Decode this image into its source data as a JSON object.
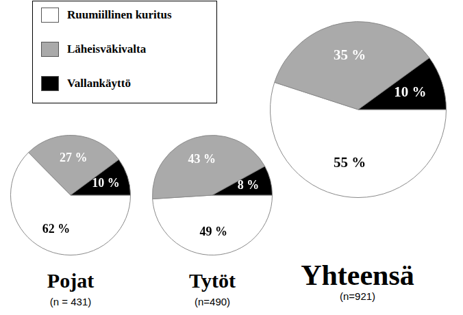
{
  "chart_data": [
    {
      "type": "pie",
      "title": "Pojat",
      "subtitle": "(n = 431)",
      "categories": [
        "Ruumiillinen kuritus",
        "Läheisväkivalta",
        "Vallankäyttö"
      ],
      "values": [
        62,
        27,
        10
      ],
      "value_labels": [
        "62 %",
        "27 %",
        "10 %"
      ],
      "colors": [
        "#ffffff",
        "#aaaaaa",
        "#000000"
      ],
      "data_labels": true,
      "legend": "top-left"
    },
    {
      "type": "pie",
      "title": "Tytöt",
      "subtitle": "(n=490)",
      "categories": [
        "Ruumiillinen kuritus",
        "Läheisväkivalta",
        "Vallankäyttö"
      ],
      "values": [
        49,
        43,
        8
      ],
      "value_labels": [
        "49 %",
        "43 %",
        "8 %"
      ],
      "colors": [
        "#ffffff",
        "#aaaaaa",
        "#000000"
      ],
      "data_labels": true
    },
    {
      "type": "pie",
      "title": "Yhteensä",
      "subtitle": "(n=921)",
      "categories": [
        "Ruumiillinen kuritus",
        "Läheisväkivalta",
        "Vallankäyttö"
      ],
      "values": [
        55,
        35,
        10
      ],
      "value_labels": [
        "55 %",
        "35 %",
        "10 %"
      ],
      "colors": [
        "#ffffff",
        "#aaaaaa",
        "#000000"
      ],
      "data_labels": true
    }
  ]
}
